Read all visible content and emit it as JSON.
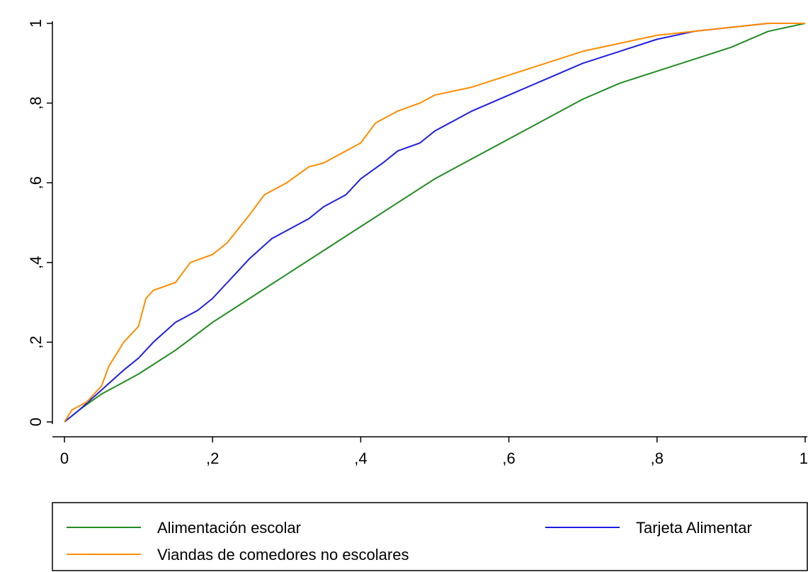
{
  "chart_data": {
    "type": "line",
    "title": "",
    "xlabel": "",
    "ylabel": "",
    "xlim": [
      0,
      1
    ],
    "ylim": [
      0,
      1
    ],
    "grid": false,
    "legend_position": "bottom",
    "x_ticks": [
      {
        "value": 0,
        "label": "0"
      },
      {
        "value": 0.2,
        "label": ",2"
      },
      {
        "value": 0.4,
        "label": ",4"
      },
      {
        "value": 0.6,
        "label": ",6"
      },
      {
        "value": 0.8,
        "label": ",8"
      },
      {
        "value": 1,
        "label": "1"
      }
    ],
    "y_ticks": [
      {
        "value": 0,
        "label": "0"
      },
      {
        "value": 0.2,
        "label": ",2"
      },
      {
        "value": 0.4,
        "label": ",4"
      },
      {
        "value": 0.6,
        "label": ",6"
      },
      {
        "value": 0.8,
        "label": ",8"
      },
      {
        "value": 1,
        "label": "1"
      }
    ],
    "series": [
      {
        "name": "Alimentación escolar",
        "color": "#228b22",
        "x": [
          0,
          0.02,
          0.05,
          0.08,
          0.1,
          0.15,
          0.2,
          0.25,
          0.3,
          0.35,
          0.4,
          0.45,
          0.5,
          0.55,
          0.6,
          0.65,
          0.7,
          0.75,
          0.8,
          0.85,
          0.9,
          0.95,
          1
        ],
        "y": [
          0,
          0.03,
          0.07,
          0.1,
          0.12,
          0.18,
          0.25,
          0.31,
          0.37,
          0.43,
          0.49,
          0.55,
          0.61,
          0.66,
          0.71,
          0.76,
          0.81,
          0.85,
          0.88,
          0.91,
          0.94,
          0.98,
          1
        ]
      },
      {
        "name": "Tarjeta Alimentar",
        "color": "#1f1fe0",
        "x": [
          0,
          0.02,
          0.05,
          0.08,
          0.1,
          0.12,
          0.15,
          0.18,
          0.2,
          0.22,
          0.25,
          0.28,
          0.3,
          0.33,
          0.35,
          0.38,
          0.4,
          0.43,
          0.45,
          0.48,
          0.5,
          0.55,
          0.6,
          0.65,
          0.7,
          0.75,
          0.8,
          0.85,
          0.9,
          0.95,
          1
        ],
        "y": [
          0,
          0.03,
          0.08,
          0.13,
          0.16,
          0.2,
          0.25,
          0.28,
          0.31,
          0.35,
          0.41,
          0.46,
          0.48,
          0.51,
          0.54,
          0.57,
          0.61,
          0.65,
          0.68,
          0.7,
          0.73,
          0.78,
          0.82,
          0.86,
          0.9,
          0.93,
          0.96,
          0.98,
          0.99,
          1,
          1
        ]
      },
      {
        "name": "Viandas de comedores no escolares",
        "color": "#ff8c00",
        "x": [
          0,
          0.01,
          0.03,
          0.05,
          0.06,
          0.08,
          0.1,
          0.11,
          0.12,
          0.15,
          0.17,
          0.2,
          0.22,
          0.25,
          0.27,
          0.3,
          0.33,
          0.35,
          0.38,
          0.4,
          0.42,
          0.45,
          0.48,
          0.5,
          0.55,
          0.6,
          0.65,
          0.7,
          0.75,
          0.8,
          0.85,
          0.9,
          0.95,
          1
        ],
        "y": [
          0,
          0.03,
          0.05,
          0.09,
          0.14,
          0.2,
          0.24,
          0.31,
          0.33,
          0.35,
          0.4,
          0.42,
          0.45,
          0.52,
          0.57,
          0.6,
          0.64,
          0.65,
          0.68,
          0.7,
          0.75,
          0.78,
          0.8,
          0.82,
          0.84,
          0.87,
          0.9,
          0.93,
          0.95,
          0.97,
          0.98,
          0.99,
          1,
          1
        ]
      }
    ]
  }
}
